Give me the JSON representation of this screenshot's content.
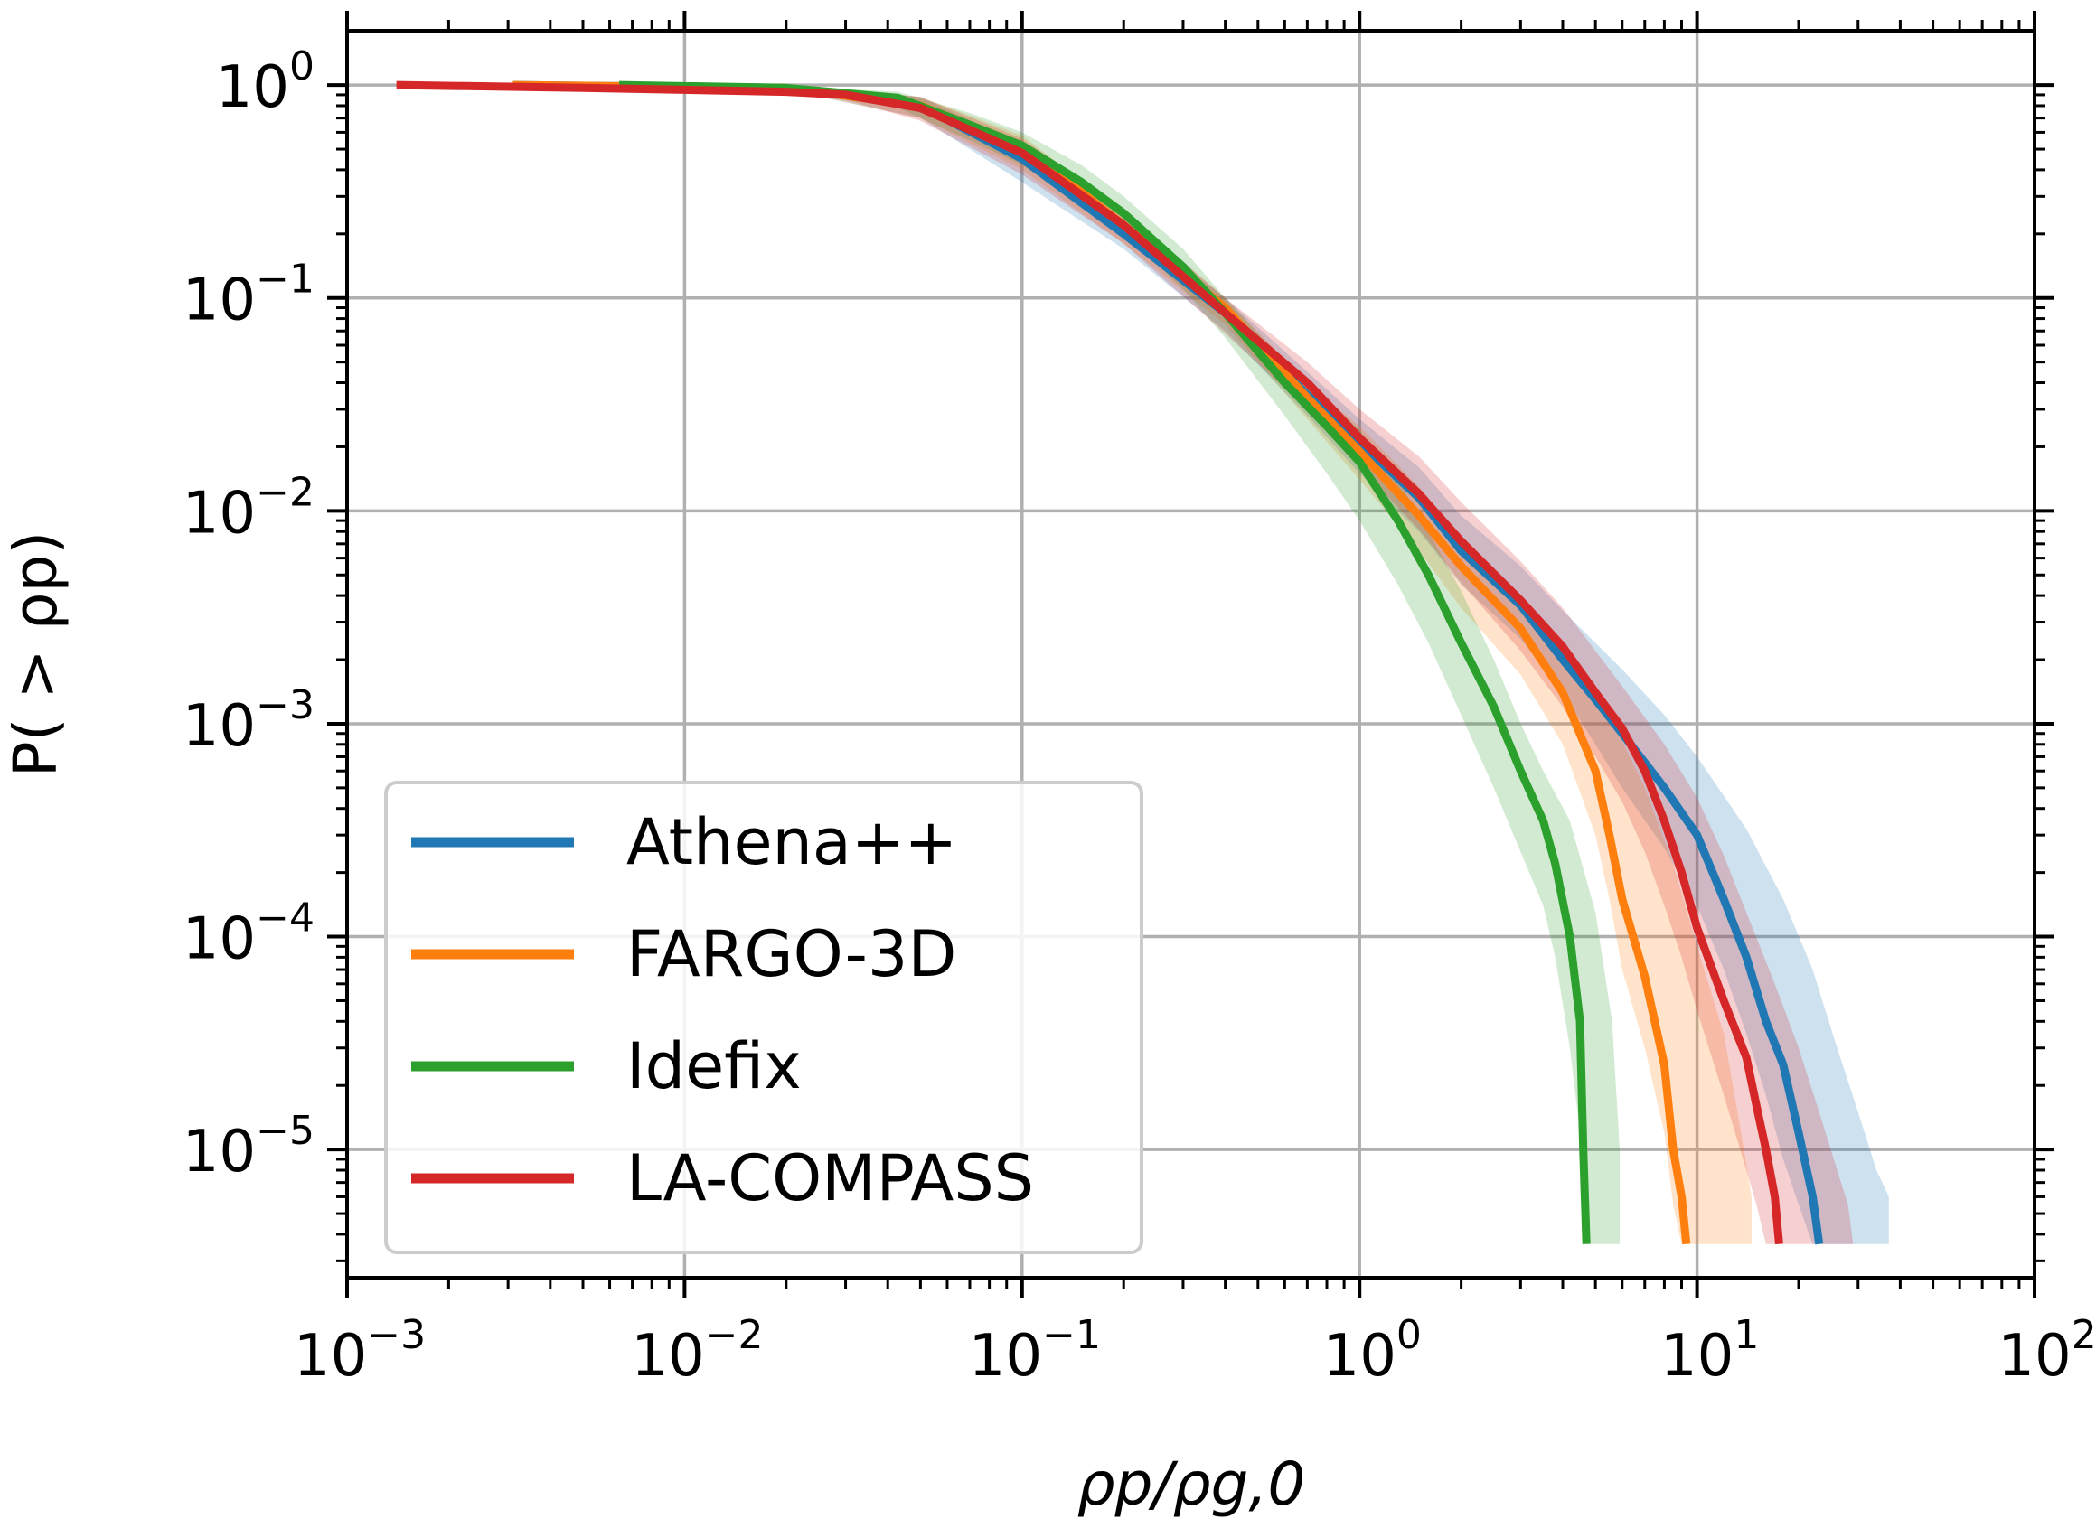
{
  "chart_data": {
    "type": "line",
    "title": "",
    "xlabel": "ρp/ρg,0",
    "ylabel": "P( > ρp)",
    "xscale": "log",
    "yscale": "log",
    "xlim": [
      0.001,
      100
    ],
    "ylim": [
      2.5e-06,
      1.8
    ],
    "grid": true,
    "legend": "lower-left",
    "x_ticks": [
      {
        "base": "10",
        "exp": "−3"
      },
      {
        "base": "10",
        "exp": "−2"
      },
      {
        "base": "10",
        "exp": "−1"
      },
      {
        "base": "10",
        "exp": "0"
      },
      {
        "base": "10",
        "exp": "1"
      },
      {
        "base": "10",
        "exp": "2"
      }
    ],
    "y_ticks": [
      {
        "base": "10",
        "exp": "0"
      },
      {
        "base": "10",
        "exp": "−1"
      },
      {
        "base": "10",
        "exp": "−2"
      },
      {
        "base": "10",
        "exp": "−3"
      },
      {
        "base": "10",
        "exp": "−4"
      },
      {
        "base": "10",
        "exp": "−5"
      }
    ],
    "series": [
      {
        "name": "Athena++",
        "color": "#1f77b4",
        "x": [
          0.0031,
          0.02,
          0.05,
          0.1,
          0.2,
          0.4,
          0.7,
          1.0,
          1.5,
          2.0,
          3.0,
          4.0,
          5.0,
          6.0,
          8.0,
          10.0,
          12.0,
          14.0,
          16.0,
          18.0,
          20.0,
          22.0,
          23.0
        ],
        "y": [
          1.0,
          0.97,
          0.8,
          0.45,
          0.2,
          0.085,
          0.035,
          0.021,
          0.0115,
          0.0065,
          0.0036,
          0.002,
          0.0013,
          0.0009,
          0.0005,
          0.0003,
          0.00015,
          8e-05,
          4e-05,
          2.5e-05,
          1.2e-05,
          6e-06,
          3.6e-06
        ],
        "band_lower": [
          1.0,
          0.95,
          0.7,
          0.35,
          0.17,
          0.07,
          0.028,
          0.015,
          0.008,
          0.0045,
          0.0025,
          0.0014,
          0.0008,
          0.0005,
          0.00026,
          0.00014,
          7e-05,
          3.5e-05,
          1.8e-05,
          9e-06,
          5.5e-06,
          3.6e-06,
          3.6e-06
        ],
        "band_upper_x": [
          0.0031,
          0.02,
          0.05,
          0.1,
          0.2,
          0.4,
          0.7,
          1.0,
          1.5,
          2.0,
          3.0,
          4.0,
          6.0,
          8.0,
          10.0,
          14.0,
          18.0,
          22.0,
          26.0,
          30.0,
          34.0,
          37.0,
          37.0
        ],
        "band_upper": [
          1.0,
          0.99,
          0.88,
          0.52,
          0.23,
          0.1,
          0.045,
          0.027,
          0.016,
          0.0095,
          0.0055,
          0.0034,
          0.0018,
          0.0011,
          0.0007,
          0.00032,
          0.00015,
          7e-05,
          3e-05,
          1.5e-05,
          8e-06,
          6e-06,
          3.6e-06
        ]
      },
      {
        "name": "FARGO-3D",
        "color": "#ff7f0e",
        "x": [
          0.0031,
          0.02,
          0.05,
          0.1,
          0.2,
          0.4,
          0.7,
          1.0,
          1.5,
          2.0,
          3.0,
          4.0,
          5.0,
          5.5,
          6.0,
          7.0,
          8.0,
          8.5,
          9.0,
          9.3
        ],
        "y": [
          1.0,
          0.97,
          0.8,
          0.52,
          0.22,
          0.09,
          0.034,
          0.019,
          0.0095,
          0.0055,
          0.0028,
          0.0014,
          0.0006,
          0.0003,
          0.00015,
          6.5e-05,
          2.5e-05,
          1e-05,
          6e-06,
          3.6e-06
        ],
        "band_lower": [
          1.0,
          0.95,
          0.7,
          0.4,
          0.18,
          0.075,
          0.027,
          0.014,
          0.0065,
          0.0035,
          0.0017,
          0.0008,
          0.0003,
          0.00015,
          7e-05,
          3e-05,
          1.2e-05,
          5.5e-06,
          3.6e-06,
          3.6e-06
        ],
        "band_upper_x": [
          0.0031,
          0.02,
          0.05,
          0.1,
          0.2,
          0.4,
          0.7,
          1.0,
          1.5,
          2.0,
          3.0,
          4.0,
          5.5,
          7.0,
          8.5,
          10.0,
          12.0,
          13.5,
          14.5,
          14.5
        ],
        "band_upper": [
          1.0,
          0.99,
          0.88,
          0.58,
          0.25,
          0.1,
          0.04,
          0.025,
          0.013,
          0.0075,
          0.004,
          0.0022,
          0.0011,
          0.0005,
          0.00022,
          9e-05,
          3.5e-05,
          1.2e-05,
          6e-06,
          3.6e-06
        ]
      },
      {
        "name": "Idefix",
        "color": "#2ca02c",
        "x": [
          0.0064,
          0.02,
          0.043,
          0.07,
          0.1,
          0.15,
          0.2,
          0.3,
          0.4,
          0.6,
          0.8,
          1.0,
          1.3,
          1.6,
          2.0,
          2.5,
          3.0,
          3.5,
          3.8,
          4.2,
          4.5,
          4.6,
          4.7
        ],
        "y": [
          1.0,
          0.97,
          0.87,
          0.65,
          0.52,
          0.35,
          0.25,
          0.14,
          0.085,
          0.04,
          0.025,
          0.017,
          0.009,
          0.005,
          0.0024,
          0.0012,
          0.0006,
          0.00035,
          0.00022,
          0.0001,
          4e-05,
          1e-05,
          3.6e-06
        ],
        "band_lower": [
          1.0,
          0.95,
          0.78,
          0.55,
          0.42,
          0.28,
          0.2,
          0.11,
          0.065,
          0.028,
          0.015,
          0.009,
          0.0045,
          0.0024,
          0.0011,
          0.0005,
          0.00025,
          0.00014,
          8e-05,
          3e-05,
          1.2e-05,
          5.5e-06,
          3.6e-06
        ],
        "band_upper_x": [
          0.0064,
          0.02,
          0.043,
          0.07,
          0.1,
          0.15,
          0.2,
          0.3,
          0.4,
          0.6,
          0.8,
          1.0,
          1.3,
          1.6,
          2.0,
          2.5,
          3.0,
          3.5,
          4.2,
          5.0,
          5.6,
          5.9,
          5.9
        ],
        "band_upper": [
          1.0,
          0.99,
          0.93,
          0.74,
          0.6,
          0.42,
          0.3,
          0.17,
          0.1,
          0.05,
          0.033,
          0.024,
          0.014,
          0.008,
          0.0042,
          0.002,
          0.001,
          0.0006,
          0.00035,
          0.00013,
          4e-05,
          1e-05,
          3.6e-06
        ]
      },
      {
        "name": "LA-COMPASS",
        "color": "#d62728",
        "x": [
          0.0014,
          0.005,
          0.01,
          0.02,
          0.03,
          0.05,
          0.1,
          0.2,
          0.4,
          0.7,
          1.0,
          1.5,
          2.0,
          3.0,
          4.0,
          5.0,
          6.0,
          7.0,
          8.0,
          9.0,
          10.0,
          12.0,
          14.0,
          15.0,
          16.0,
          17.0,
          17.5
        ],
        "y": [
          1.0,
          0.97,
          0.95,
          0.93,
          0.9,
          0.78,
          0.48,
          0.22,
          0.085,
          0.04,
          0.022,
          0.012,
          0.0072,
          0.0038,
          0.0023,
          0.0014,
          0.00095,
          0.0006,
          0.00035,
          0.0002,
          0.00011,
          5e-05,
          2.7e-05,
          1.6e-05,
          1e-05,
          6e-06,
          3.6e-06
        ],
        "band_lower": [
          1.0,
          0.97,
          0.94,
          0.9,
          0.85,
          0.68,
          0.38,
          0.18,
          0.068,
          0.03,
          0.016,
          0.0082,
          0.0046,
          0.0022,
          0.0012,
          0.0007,
          0.00043,
          0.00025,
          0.00014,
          8e-05,
          4.5e-05,
          1.8e-05,
          8e-06,
          5.5e-06,
          3.6e-06,
          3.6e-06,
          3.6e-06
        ],
        "band_upper_x": [
          0.0014,
          0.005,
          0.01,
          0.02,
          0.03,
          0.05,
          0.1,
          0.2,
          0.4,
          0.7,
          1.0,
          1.5,
          2.0,
          3.0,
          4.0,
          5.0,
          6.0,
          8.0,
          10.0,
          12.0,
          14.0,
          17.0,
          20.0,
          23.0,
          26.0,
          28.0,
          29.0
        ],
        "band_upper": [
          1.0,
          0.98,
          0.97,
          0.96,
          0.95,
          0.88,
          0.56,
          0.26,
          0.1,
          0.05,
          0.03,
          0.018,
          0.011,
          0.0058,
          0.0035,
          0.0022,
          0.0015,
          0.0008,
          0.00045,
          0.00024,
          0.00013,
          6e-05,
          3e-05,
          1.5e-05,
          8e-06,
          5.5e-06,
          3.6e-06
        ]
      }
    ]
  }
}
